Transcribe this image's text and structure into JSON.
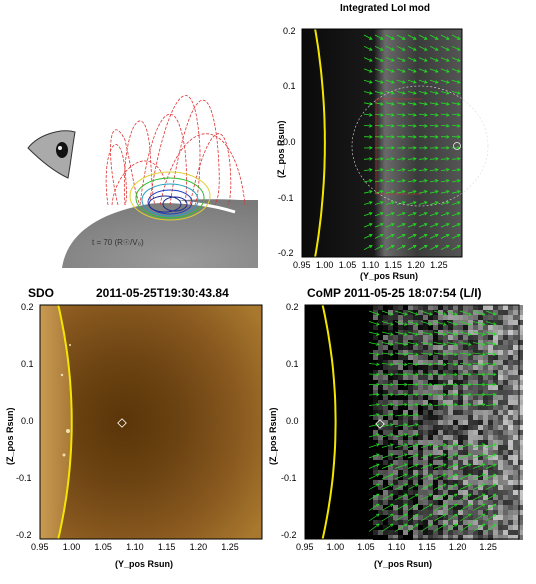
{
  "schematic": {
    "caption": "t = 70 (R☉/V₀)"
  },
  "panels": {
    "model": {
      "title": "Integrated LoI mod"
    },
    "sdo": {
      "title_left": "SDO",
      "title_right": "2011-05-25T19:30:43.84"
    },
    "comp": {
      "title": "CoMP 2011-05-25 18:07:54 (L/I)"
    }
  },
  "axes": {
    "xlabel": "(Y_pos Rsun)",
    "ylabel": "(Z_pos Rsun)",
    "xticks": [
      "0.95",
      "1.00",
      "1.05",
      "1.10",
      "1.15",
      "1.20",
      "1.25"
    ],
    "yticks": [
      "0.2",
      "0.1",
      "0.0",
      "-0.1",
      "-0.2"
    ]
  },
  "colors": {
    "limb": "#f2e600",
    "vectors": "#22dd22",
    "field_lines": "#e03030"
  },
  "chart_data": {
    "type": "image-panels",
    "xlim": [
      0.95,
      1.3
    ],
    "ylim": [
      -0.205,
      0.205
    ],
    "limb_radius": 1.0,
    "marker": {
      "x": 1.08,
      "y": 0.0
    }
  }
}
